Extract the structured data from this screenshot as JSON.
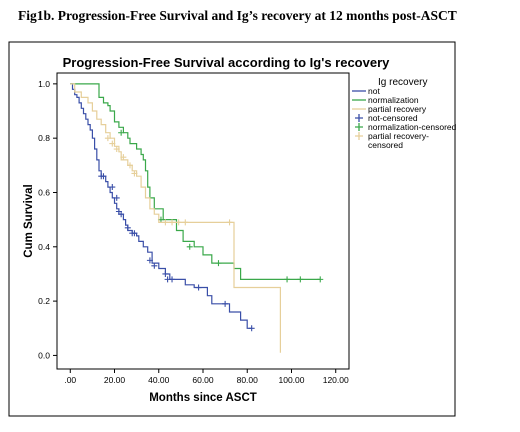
{
  "figure": {
    "caption": "Fig1b.  Progression-Free Survival  and Ig’s recovery at 12 months post-ASCT"
  },
  "chart_data": {
    "type": "line",
    "step": true,
    "title": "Progression-Free Survival according to Ig's recovery",
    "xlabel": "Months since ASCT",
    "ylabel": "Cum Survival",
    "xlim": [
      -6,
      126
    ],
    "ylim": [
      -0.05,
      1.04
    ],
    "x_ticks": [
      0,
      20,
      40,
      60,
      80,
      100,
      120
    ],
    "x_tick_labels": [
      ".00",
      "20.00",
      "40.00",
      "60.00",
      "80.00",
      "100.00",
      "120.00"
    ],
    "y_ticks": [
      0,
      0.2,
      0.4,
      0.6,
      0.8,
      1.0
    ],
    "y_tick_labels": [
      "0.0",
      "0.2",
      "0.4",
      "0.6",
      "0.8",
      "1.0"
    ],
    "grid": false,
    "legend": {
      "title": "Ig recovery",
      "placement": "right",
      "entries": [
        {
          "label": "not",
          "kind": "line",
          "color": "#3a4fa8"
        },
        {
          "label": "normalization",
          "kind": "line",
          "color": "#3aa84a"
        },
        {
          "label": "partial recovery",
          "kind": "line",
          "color": "#e6cf9a"
        },
        {
          "label": "not-censored",
          "kind": "cross",
          "color": "#3a4fa8"
        },
        {
          "label": "normalization-censored",
          "kind": "cross",
          "color": "#3aa84a"
        },
        {
          "label": "partial recovery-\ncensored",
          "kind": "cross",
          "color": "#e6cf9a"
        }
      ]
    },
    "series": [
      {
        "name": "not",
        "color": "#3a4fa8",
        "steps": [
          [
            0,
            1.0
          ],
          [
            1,
            0.98
          ],
          [
            2,
            0.96
          ],
          [
            3,
            0.95
          ],
          [
            4,
            0.93
          ],
          [
            5,
            0.91
          ],
          [
            6,
            0.89
          ],
          [
            7,
            0.87
          ],
          [
            8,
            0.85
          ],
          [
            9,
            0.83
          ],
          [
            10,
            0.8
          ],
          [
            11,
            0.76
          ],
          [
            12,
            0.72
          ],
          [
            13,
            0.68
          ],
          [
            14,
            0.66
          ],
          [
            16,
            0.64
          ],
          [
            17,
            0.62
          ],
          [
            18,
            0.6
          ],
          [
            19,
            0.58
          ],
          [
            20,
            0.56
          ],
          [
            21,
            0.54
          ],
          [
            22,
            0.52
          ],
          [
            24,
            0.5
          ],
          [
            25,
            0.48
          ],
          [
            26,
            0.46
          ],
          [
            28,
            0.45
          ],
          [
            30,
            0.44
          ],
          [
            31,
            0.42
          ],
          [
            33,
            0.4
          ],
          [
            35,
            0.38
          ],
          [
            37,
            0.34
          ],
          [
            40,
            0.32
          ],
          [
            43,
            0.3
          ],
          [
            45,
            0.28
          ],
          [
            52,
            0.26
          ],
          [
            56,
            0.25
          ],
          [
            62,
            0.22
          ],
          [
            64,
            0.19
          ],
          [
            72,
            0.16
          ],
          [
            77,
            0.13
          ],
          [
            80,
            0.1
          ],
          [
            82,
            0.1
          ]
        ],
        "censored": [
          [
            14,
            0.66
          ],
          [
            15,
            0.66
          ],
          [
            19,
            0.62
          ],
          [
            21,
            0.58
          ],
          [
            22,
            0.53
          ],
          [
            23,
            0.52
          ],
          [
            26,
            0.47
          ],
          [
            28,
            0.45
          ],
          [
            29,
            0.45
          ],
          [
            36,
            0.35
          ],
          [
            38,
            0.33
          ],
          [
            43,
            0.3
          ],
          [
            44,
            0.28
          ],
          [
            46,
            0.28
          ],
          [
            58,
            0.25
          ],
          [
            70,
            0.19
          ],
          [
            82,
            0.1
          ]
        ]
      },
      {
        "name": "normalization",
        "color": "#3aa84a",
        "steps": [
          [
            0,
            1.0
          ],
          [
            12,
            1.0
          ],
          [
            13,
            0.95
          ],
          [
            15,
            0.93
          ],
          [
            17,
            0.92
          ],
          [
            18,
            0.9
          ],
          [
            20,
            0.86
          ],
          [
            22,
            0.84
          ],
          [
            24,
            0.82
          ],
          [
            26,
            0.8
          ],
          [
            27,
            0.78
          ],
          [
            30,
            0.76
          ],
          [
            32,
            0.74
          ],
          [
            33,
            0.72
          ],
          [
            34,
            0.68
          ],
          [
            35,
            0.62
          ],
          [
            36,
            0.58
          ],
          [
            38,
            0.54
          ],
          [
            42,
            0.5
          ],
          [
            48,
            0.46
          ],
          [
            51,
            0.42
          ],
          [
            56,
            0.4
          ],
          [
            60,
            0.37
          ],
          [
            64,
            0.34
          ],
          [
            74,
            0.32
          ],
          [
            77,
            0.28
          ],
          [
            113,
            0.28
          ]
        ],
        "censored": [
          [
            23,
            0.82
          ],
          [
            41,
            0.5
          ],
          [
            54,
            0.4
          ],
          [
            67,
            0.34
          ],
          [
            98,
            0.28
          ],
          [
            104,
            0.28
          ],
          [
            113,
            0.28
          ]
        ]
      },
      {
        "name": "partial recovery",
        "color": "#e6cf9a",
        "steps": [
          [
            0,
            1.0
          ],
          [
            2,
            0.97
          ],
          [
            5,
            0.95
          ],
          [
            8,
            0.93
          ],
          [
            10,
            0.9
          ],
          [
            12,
            0.87
          ],
          [
            14,
            0.85
          ],
          [
            16,
            0.82
          ],
          [
            18,
            0.8
          ],
          [
            20,
            0.77
          ],
          [
            22,
            0.75
          ],
          [
            23,
            0.72
          ],
          [
            26,
            0.7
          ],
          [
            28,
            0.68
          ],
          [
            30,
            0.66
          ],
          [
            32,
            0.62
          ],
          [
            34,
            0.58
          ],
          [
            36,
            0.54
          ],
          [
            38,
            0.52
          ],
          [
            40,
            0.49
          ],
          [
            74,
            0.49
          ],
          [
            74,
            0.25
          ],
          [
            95,
            0.25
          ],
          [
            95,
            0.01
          ]
        ],
        "censored": [
          [
            17,
            0.8
          ],
          [
            19,
            0.78
          ],
          [
            21,
            0.76
          ],
          [
            24,
            0.73
          ],
          [
            27,
            0.7
          ],
          [
            29,
            0.67
          ],
          [
            43,
            0.49
          ],
          [
            46,
            0.49
          ],
          [
            49,
            0.49
          ],
          [
            52,
            0.49
          ],
          [
            72,
            0.49
          ]
        ]
      }
    ]
  }
}
